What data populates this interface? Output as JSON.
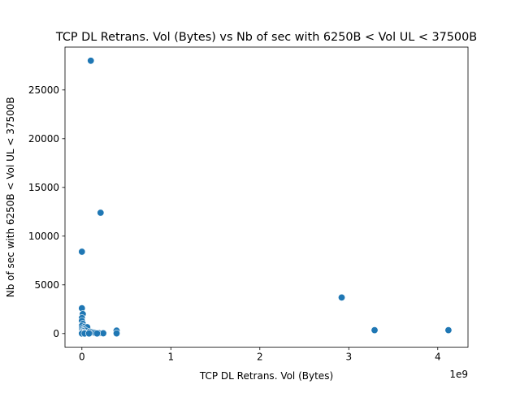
{
  "chart_data": {
    "type": "scatter",
    "title": "TCP DL Retrans. Vol (Bytes) vs Nb of sec with 6250B < Vol UL < 37500B",
    "xlabel": "TCP DL Retrans. Vol (Bytes)",
    "ylabel": "Nb of sec with 6250B < Vol UL < 37500B",
    "x_offset_label": "1e9",
    "x_scale": 1000000000,
    "xlim": [
      -0.19,
      4.34
    ],
    "ylim": [
      -1400,
      29400
    ],
    "x_ticks": [
      0,
      1,
      2,
      3,
      4
    ],
    "x_tick_labels": [
      "0",
      "1",
      "2",
      "3",
      "4"
    ],
    "y_ticks": [
      0,
      5000,
      10000,
      15000,
      20000,
      25000
    ],
    "y_tick_labels": [
      "0",
      "5000",
      "10000",
      "15000",
      "20000",
      "25000"
    ],
    "grid": false,
    "point_color": "#1f77b4",
    "points": [
      {
        "x": 0.1,
        "y": 28000
      },
      {
        "x": 0.21,
        "y": 12400
      },
      {
        "x": 0.0,
        "y": 8400
      },
      {
        "x": 2.92,
        "y": 3700
      },
      {
        "x": 3.29,
        "y": 350
      },
      {
        "x": 4.12,
        "y": 350
      },
      {
        "x": 0.0,
        "y": 2600
      },
      {
        "x": 0.01,
        "y": 2000
      },
      {
        "x": 0.0,
        "y": 1600
      },
      {
        "x": 0.0,
        "y": 1300
      },
      {
        "x": 0.01,
        "y": 1000
      },
      {
        "x": 0.0,
        "y": 800
      },
      {
        "x": 0.03,
        "y": 700
      },
      {
        "x": 0.06,
        "y": 650
      },
      {
        "x": 0.0,
        "y": 550
      },
      {
        "x": 0.02,
        "y": 450
      },
      {
        "x": 0.0,
        "y": 350
      },
      {
        "x": 0.04,
        "y": 300
      },
      {
        "x": 0.01,
        "y": 250
      },
      {
        "x": 0.0,
        "y": 150
      },
      {
        "x": 0.02,
        "y": 100
      },
      {
        "x": 0.0,
        "y": 50
      },
      {
        "x": 0.05,
        "y": 50
      },
      {
        "x": 0.07,
        "y": 30
      },
      {
        "x": 0.09,
        "y": 200
      },
      {
        "x": 0.11,
        "y": 150
      },
      {
        "x": 0.13,
        "y": 100
      },
      {
        "x": 0.15,
        "y": 60
      },
      {
        "x": 0.19,
        "y": 40
      },
      {
        "x": 0.24,
        "y": 30
      },
      {
        "x": 0.39,
        "y": 300
      },
      {
        "x": 0.39,
        "y": 20
      },
      {
        "x": 0.0,
        "y": 0
      },
      {
        "x": 0.03,
        "y": 0
      },
      {
        "x": 0.08,
        "y": 10
      },
      {
        "x": 0.17,
        "y": 10
      }
    ]
  }
}
